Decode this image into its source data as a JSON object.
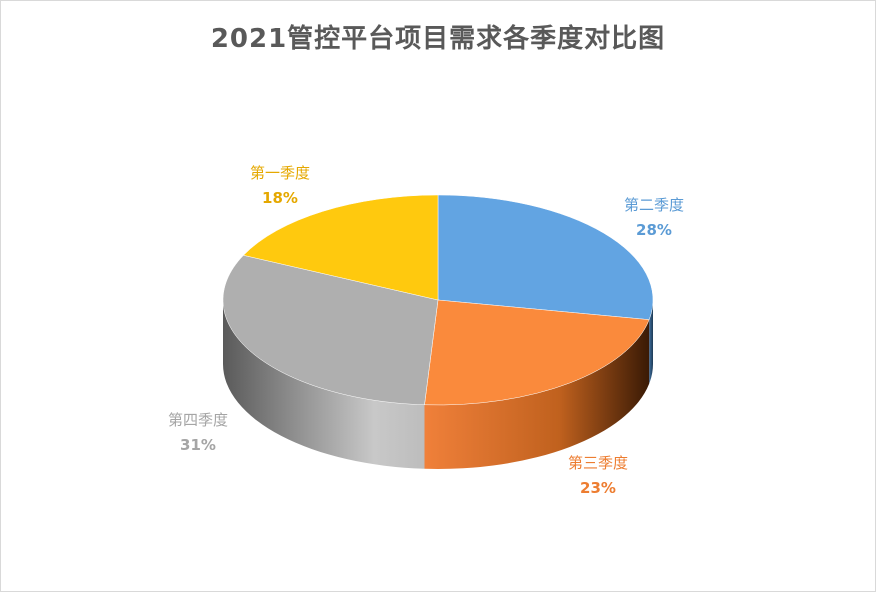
{
  "chart_data": {
    "type": "pie",
    "title": "2021管控平台项目需求各季度对比图",
    "categories": [
      "第一季度",
      "第二季度",
      "第三季度",
      "第四季度"
    ],
    "values": [
      18,
      28,
      23,
      31
    ],
    "labels": [
      "18%",
      "28%",
      "23%",
      "31%"
    ],
    "colors": [
      "#FFC90E",
      "#62A4E2",
      "#FA8A3C",
      "#AFAFAF"
    ],
    "label_colors": [
      "#E5A800",
      "#5B9BD5",
      "#ED7D31",
      "#A5A5A5"
    ],
    "unit": "%",
    "legend": "none",
    "style": "3d"
  }
}
